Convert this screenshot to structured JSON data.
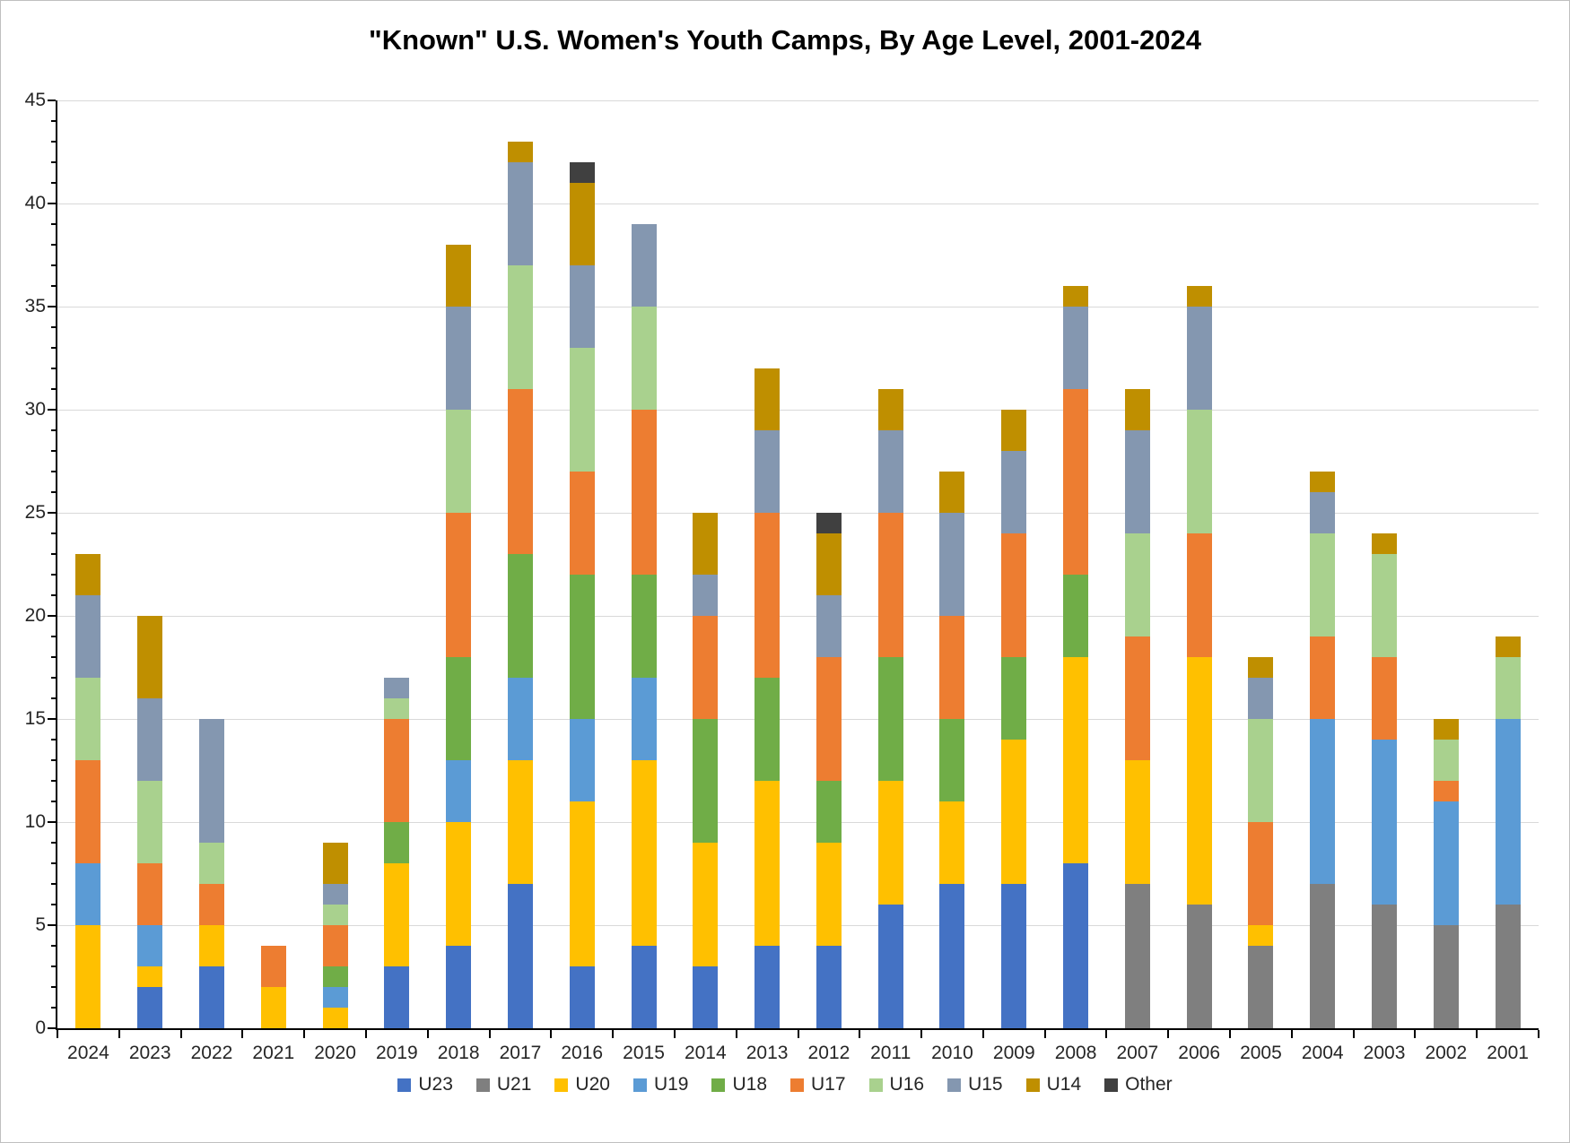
{
  "title": "\"Known\" U.S. Women's Youth Camps, By Age Level, 2001-2024",
  "chart_data": {
    "type": "bar",
    "stacked": true,
    "title": "\"Known\" U.S. Women's Youth Camps, By Age Level, 2001-2024",
    "xlabel": "",
    "ylabel": "",
    "ylim": [
      0,
      45
    ],
    "ytick_step": 5,
    "ytick_labels": [
      "0",
      "5",
      "10",
      "15",
      "20",
      "25",
      "30",
      "35",
      "40",
      "45"
    ],
    "grid": true,
    "legend_position": "bottom",
    "categories": [
      "2024",
      "2023",
      "2022",
      "2021",
      "2020",
      "2019",
      "2018",
      "2017",
      "2016",
      "2015",
      "2014",
      "2013",
      "2012",
      "2011",
      "2010",
      "2009",
      "2008",
      "2007",
      "2006",
      "2005",
      "2004",
      "2003",
      "2002",
      "2001"
    ],
    "series": [
      {
        "name": "U23",
        "color": "#4472C4",
        "values": [
          0,
          2,
          3,
          0,
          0,
          3,
          4,
          7,
          3,
          4,
          3,
          4,
          4,
          6,
          7,
          7,
          8,
          0,
          0,
          0,
          0,
          0,
          0,
          0
        ]
      },
      {
        "name": "U21",
        "color": "#7F7F7F",
        "values": [
          0,
          0,
          0,
          0,
          0,
          0,
          0,
          0,
          0,
          0,
          0,
          0,
          0,
          0,
          0,
          0,
          0,
          7,
          6,
          4,
          7,
          6,
          5,
          6
        ]
      },
      {
        "name": "U20",
        "color": "#FFC000",
        "values": [
          5,
          1,
          2,
          2,
          1,
          5,
          6,
          6,
          8,
          9,
          6,
          8,
          5,
          6,
          4,
          7,
          10,
          6,
          12,
          1,
          0,
          0,
          0,
          0
        ]
      },
      {
        "name": "U19",
        "color": "#5B9BD5",
        "values": [
          3,
          2,
          0,
          0,
          1,
          0,
          3,
          4,
          4,
          4,
          0,
          0,
          0,
          0,
          0,
          0,
          0,
          0,
          0,
          0,
          8,
          8,
          6,
          9
        ]
      },
      {
        "name": "U18",
        "color": "#70AD47",
        "values": [
          0,
          0,
          0,
          0,
          1,
          2,
          5,
          6,
          7,
          5,
          6,
          5,
          3,
          6,
          4,
          4,
          4,
          0,
          0,
          0,
          0,
          0,
          0,
          0
        ]
      },
      {
        "name": "U17",
        "color": "#ED7D31",
        "values": [
          5,
          3,
          2,
          2,
          2,
          5,
          7,
          8,
          5,
          8,
          5,
          8,
          6,
          7,
          5,
          6,
          9,
          6,
          6,
          5,
          4,
          4,
          1,
          0
        ]
      },
      {
        "name": "U16",
        "color": "#A9D18E",
        "values": [
          4,
          4,
          2,
          0,
          1,
          1,
          5,
          6,
          6,
          5,
          0,
          0,
          0,
          0,
          0,
          0,
          0,
          5,
          6,
          5,
          5,
          5,
          2,
          3
        ]
      },
      {
        "name": "U15",
        "color": "#8497B0",
        "values": [
          4,
          4,
          6,
          0,
          1,
          1,
          5,
          5,
          4,
          4,
          2,
          4,
          3,
          4,
          5,
          4,
          4,
          5,
          5,
          2,
          2,
          0,
          0,
          0
        ]
      },
      {
        "name": "U14",
        "color": "#BF8F00",
        "values": [
          2,
          4,
          0,
          0,
          2,
          0,
          3,
          1,
          4,
          0,
          3,
          3,
          3,
          2,
          2,
          2,
          1,
          2,
          1,
          1,
          1,
          1,
          1,
          1
        ]
      },
      {
        "name": "Other",
        "color": "#404040",
        "values": [
          0,
          0,
          0,
          0,
          0,
          0,
          0,
          0,
          1,
          0,
          0,
          0,
          1,
          0,
          0,
          0,
          0,
          0,
          0,
          0,
          0,
          0,
          0,
          0
        ]
      }
    ],
    "totals": [
      23,
      20,
      15,
      4,
      9,
      17,
      38,
      43,
      42,
      39,
      25,
      32,
      25,
      31,
      27,
      30,
      36,
      31,
      36,
      18,
      27,
      24,
      15,
      19
    ]
  }
}
